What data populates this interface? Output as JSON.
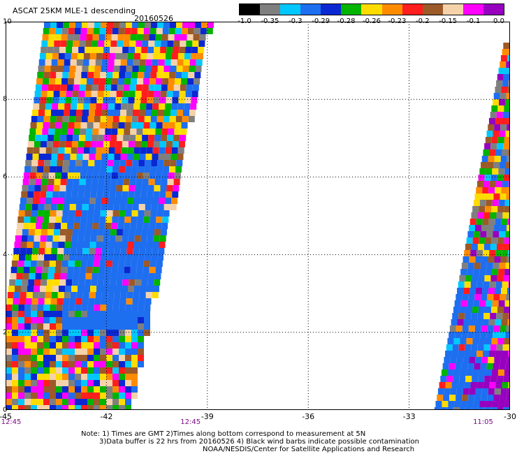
{
  "header": {
    "title": "ASCAT 25KM MLE-1 descending",
    "date": "20160526"
  },
  "legend": {
    "ticks": [
      "-1.0",
      "-0.35",
      "-0.3",
      "-0.29",
      "-0.28",
      "-0.26",
      "-0.23",
      "-0.2",
      "-0.15",
      "-0.1",
      "0.0"
    ],
    "colors": [
      "#000000",
      "#7f7f7f",
      "#00c8ff",
      "#1e6ef0",
      "#0a28d2",
      "#00b400",
      "#ffdc00",
      "#ff8c00",
      "#ff1e1e",
      "#9b5a28",
      "#f5d2aa",
      "#ff00ff",
      "#9600be"
    ]
  },
  "axes": {
    "x_ticks": [
      "-45",
      "-42",
      "-39",
      "-36",
      "-33",
      "-30"
    ],
    "y_ticks": [
      "10",
      "8",
      "6",
      "4",
      "2",
      "0"
    ],
    "x_range": [
      -45,
      -30
    ],
    "y_range": [
      0,
      10
    ]
  },
  "pass_times": [
    {
      "time": "12:45",
      "lon": -45
    },
    {
      "time": "12:45",
      "lon": -39.5
    },
    {
      "time": "11:05",
      "lon": -30.8
    }
  ],
  "notes": {
    "line1": "Note: 1) Times are GMT 2)Times along bottom correspond to measurement at 5N",
    "line2": "3)Data buffer is 22 hrs from 20160526 4) Black wind barbs indicate possible contamination",
    "line3": "NOAA/NESDIS/Center for Satellite Applications and Research"
  }
}
